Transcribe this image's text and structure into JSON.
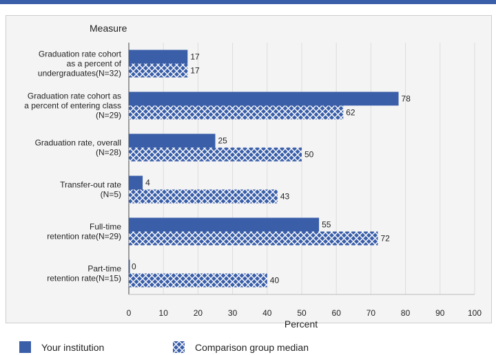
{
  "chart_data": {
    "type": "bar",
    "orientation": "horizontal",
    "title": "",
    "category_axis_title": "Measure",
    "xlabel": "Percent",
    "xlim": [
      0,
      100
    ],
    "x_ticks": [
      0,
      10,
      20,
      30,
      40,
      50,
      60,
      70,
      80,
      90,
      100
    ],
    "grid": true,
    "categories": [
      [
        "Graduation rate cohort",
        "as a percent of",
        "undergraduates(N=32)"
      ],
      [
        "Graduation rate cohort as",
        "a percent of entering class",
        "(N=29)"
      ],
      [
        "Graduation rate, overall",
        "(N=28)"
      ],
      [
        "Transfer-out rate",
        "(N=5)"
      ],
      [
        "Full-time",
        "retention rate(N=29)"
      ],
      [
        "Part-time",
        "retention rate(N=15)"
      ]
    ],
    "series": [
      {
        "name": "Your institution",
        "pattern": "solid",
        "color": "#3a5ea8",
        "values": [
          17,
          78,
          25,
          4,
          55,
          0
        ]
      },
      {
        "name": "Comparison group median",
        "pattern": "crosshatch",
        "color": "#3a5ea8",
        "values": [
          17,
          62,
          50,
          43,
          72,
          40
        ]
      }
    ],
    "legend_position": "bottom"
  }
}
